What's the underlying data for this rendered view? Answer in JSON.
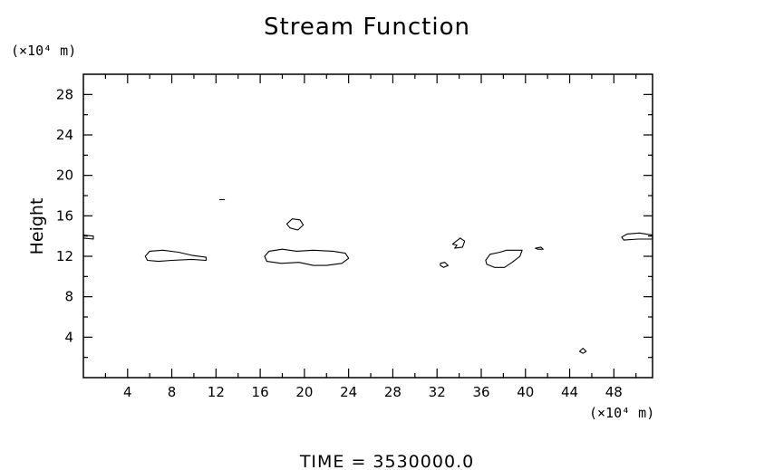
{
  "chart_data": {
    "type": "contour",
    "title": "Stream Function",
    "xlabel": "",
    "x_unit": "(×10⁴ m)",
    "ylabel": "Height",
    "y_unit": "(×10⁴ m)",
    "footer": "TIME  =  3530000.0",
    "xlim": [
      0,
      51.5
    ],
    "ylim": [
      0,
      30
    ],
    "x_ticks": [
      4,
      8,
      12,
      16,
      20,
      24,
      28,
      32,
      36,
      40,
      44,
      48
    ],
    "y_ticks": [
      4,
      8,
      12,
      16,
      20,
      24,
      28
    ],
    "x_minor_step": 2,
    "y_minor_step": 2,
    "contours": [
      {
        "points": [
          [
            0.0,
            14.1
          ],
          [
            0.9,
            14.0
          ],
          [
            0.9,
            13.7
          ],
          [
            0.0,
            13.8
          ]
        ]
      },
      {
        "points": [
          [
            5.6,
            12.0
          ],
          [
            6.0,
            12.5
          ],
          [
            7.2,
            12.6
          ],
          [
            8.6,
            12.4
          ],
          [
            9.8,
            12.1
          ],
          [
            11.1,
            11.9
          ],
          [
            11.1,
            11.6
          ],
          [
            9.8,
            11.7
          ],
          [
            8.0,
            11.6
          ],
          [
            6.8,
            11.5
          ],
          [
            5.8,
            11.6
          ]
        ]
      },
      {
        "points": [
          [
            12.3,
            17.6
          ],
          [
            12.8,
            17.6
          ]
        ]
      },
      {
        "points": [
          [
            16.4,
            12.0
          ],
          [
            16.8,
            12.5
          ],
          [
            18.0,
            12.7
          ],
          [
            19.3,
            12.5
          ],
          [
            20.8,
            12.6
          ],
          [
            22.6,
            12.5
          ],
          [
            23.7,
            12.3
          ],
          [
            24.0,
            11.8
          ],
          [
            23.4,
            11.3
          ],
          [
            22.0,
            11.1
          ],
          [
            20.8,
            11.1
          ],
          [
            19.5,
            11.4
          ],
          [
            17.9,
            11.3
          ],
          [
            16.6,
            11.5
          ]
        ]
      },
      {
        "points": [
          [
            18.4,
            15.2
          ],
          [
            18.9,
            15.7
          ],
          [
            19.6,
            15.6
          ],
          [
            19.9,
            15.1
          ],
          [
            19.4,
            14.6
          ],
          [
            18.7,
            14.8
          ]
        ]
      },
      {
        "points": [
          [
            32.3,
            11.3
          ],
          [
            32.7,
            11.4
          ],
          [
            33.0,
            11.1
          ],
          [
            32.6,
            10.9
          ],
          [
            32.3,
            11.1
          ]
        ]
      },
      {
        "points": [
          [
            33.4,
            13.2
          ],
          [
            34.1,
            13.8
          ],
          [
            34.5,
            13.5
          ],
          [
            34.3,
            12.9
          ],
          [
            33.6,
            12.8
          ],
          [
            33.8,
            13.1
          ]
        ]
      },
      {
        "points": [
          [
            36.4,
            11.6
          ],
          [
            36.8,
            12.2
          ],
          [
            37.7,
            12.4
          ],
          [
            38.3,
            12.6
          ],
          [
            39.7,
            12.6
          ],
          [
            39.5,
            12.0
          ],
          [
            38.8,
            11.4
          ],
          [
            38.1,
            10.9
          ],
          [
            37.2,
            10.9
          ],
          [
            36.5,
            11.2
          ]
        ]
      },
      {
        "points": [
          [
            40.9,
            12.8
          ],
          [
            41.4,
            12.9
          ],
          [
            41.6,
            12.7
          ],
          [
            41.1,
            12.7
          ]
        ]
      },
      {
        "points": [
          [
            44.9,
            2.6
          ],
          [
            45.2,
            2.9
          ],
          [
            45.5,
            2.6
          ],
          [
            45.2,
            2.4
          ]
        ]
      },
      {
        "points": [
          [
            48.7,
            13.9
          ],
          [
            49.2,
            14.2
          ],
          [
            50.3,
            14.3
          ],
          [
            51.5,
            14.1
          ],
          [
            51.5,
            13.7
          ],
          [
            50.2,
            13.7
          ],
          [
            48.9,
            13.6
          ]
        ]
      }
    ]
  }
}
